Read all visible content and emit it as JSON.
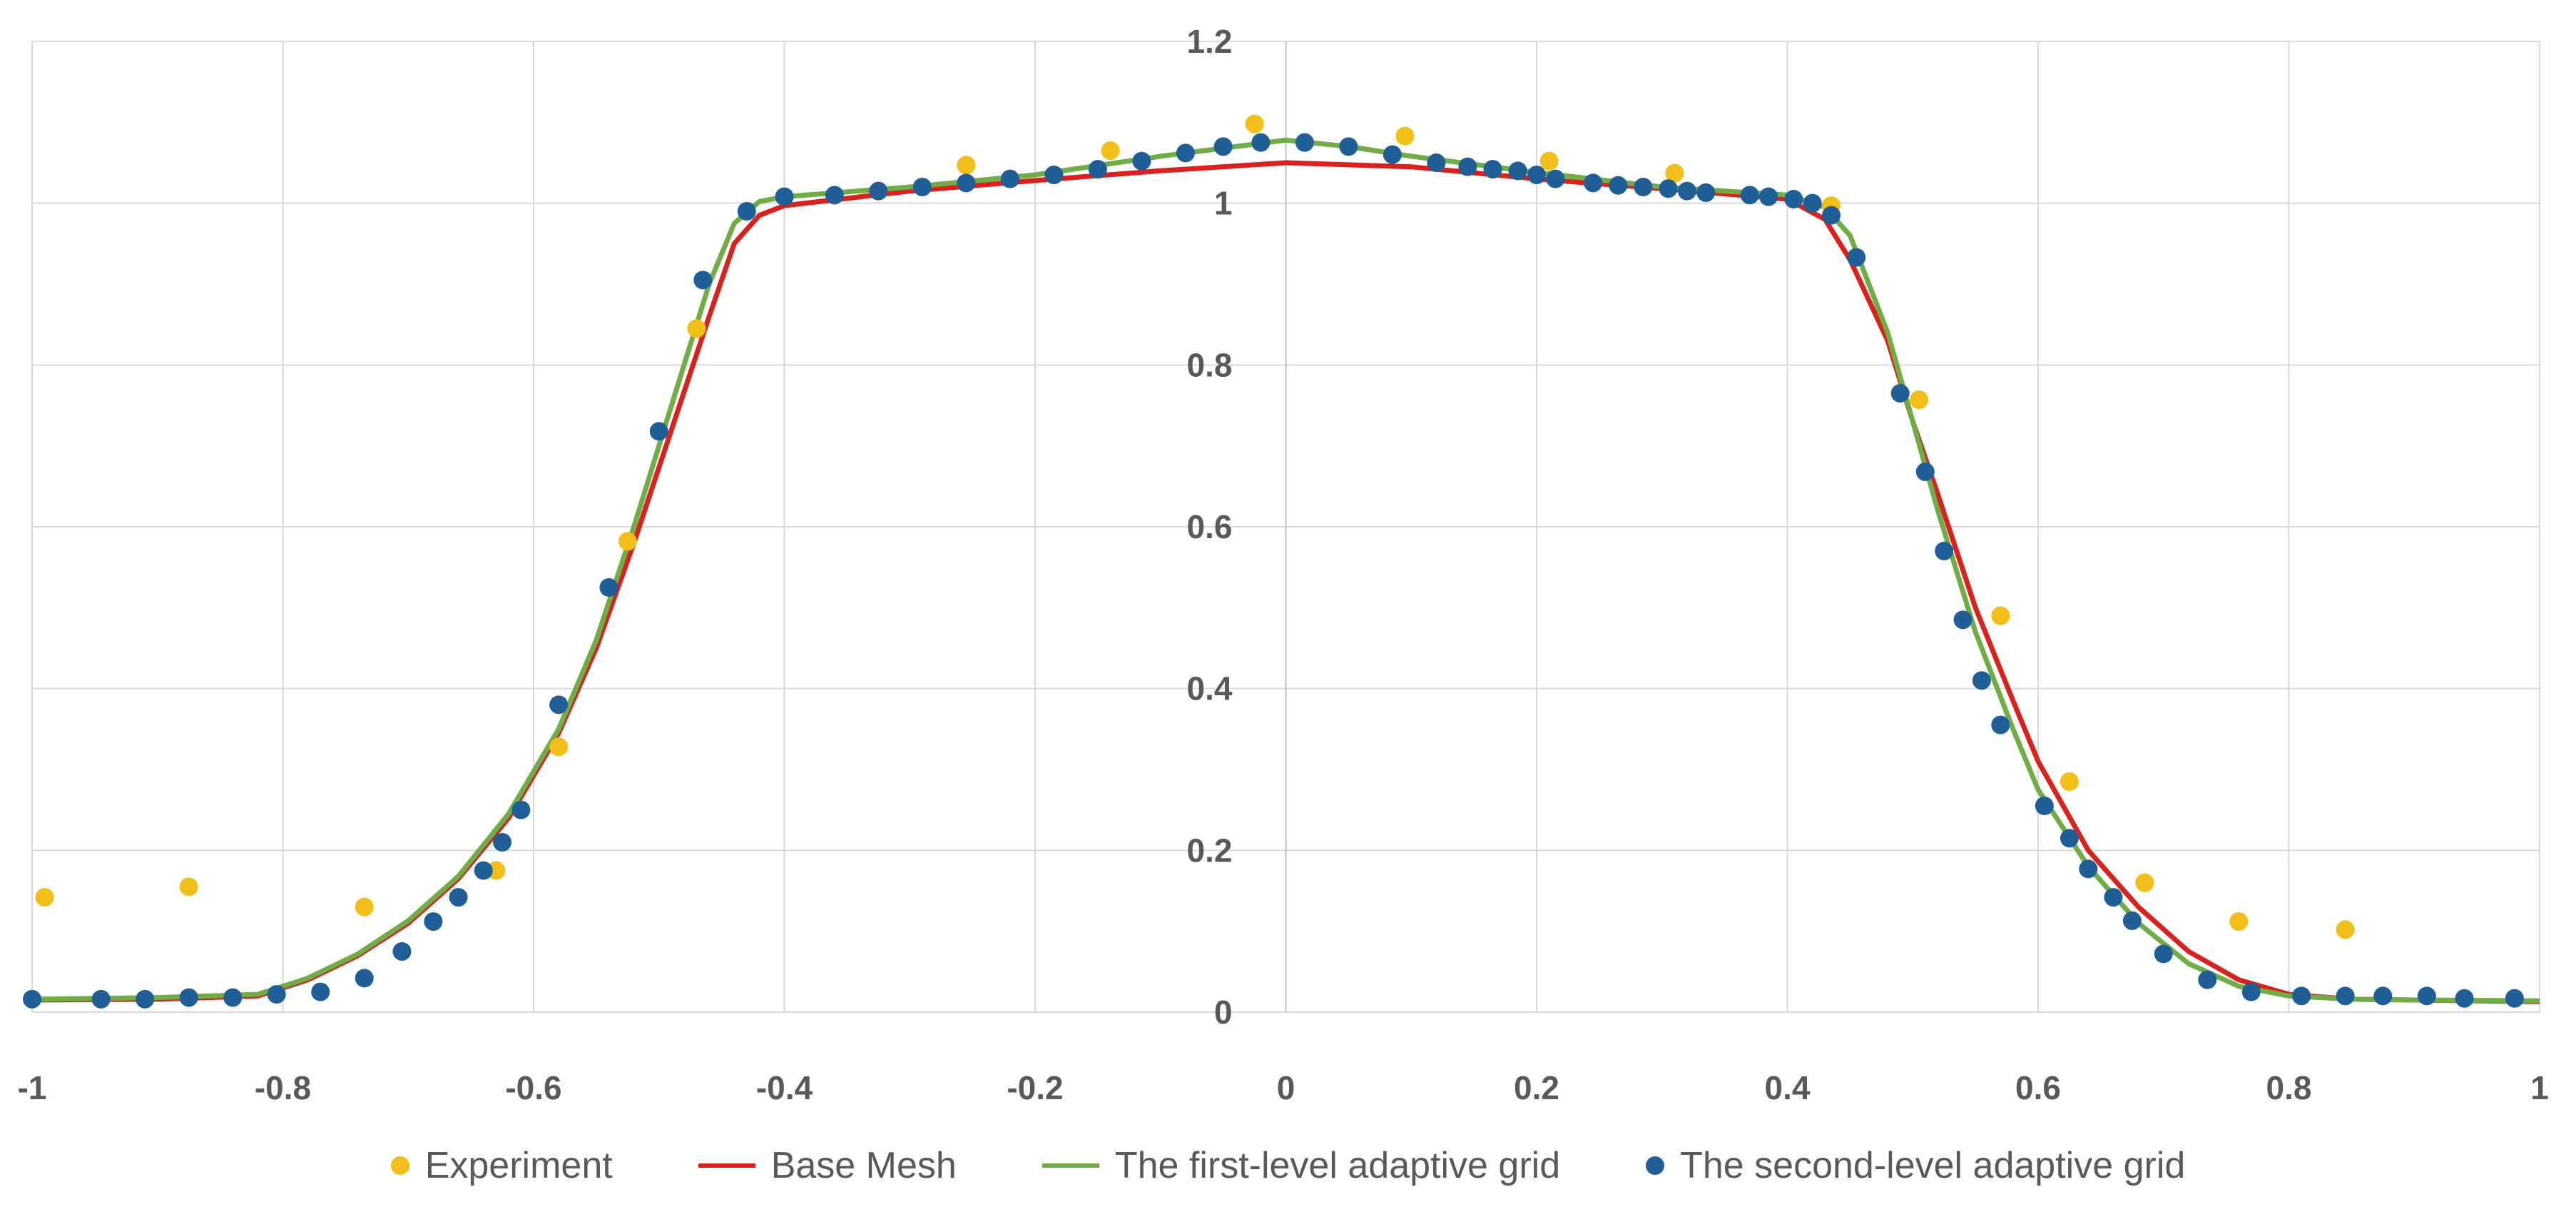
{
  "chart_data": {
    "type": "line",
    "title": "",
    "xlabel": "",
    "ylabel": "",
    "xlim": [
      -1,
      1
    ],
    "ylim": [
      0,
      1.2
    ],
    "grid": true,
    "legend_position": "bottom",
    "x_ticks": [
      "-1",
      "-0.8",
      "-0.6",
      "-0.4",
      "-0.2",
      "0",
      "0.2",
      "0.4",
      "0.6",
      "0.8",
      "1"
    ],
    "y_ticks": [
      "0",
      "0.2",
      "0.4",
      "0.6",
      "0.8",
      "1",
      "1.2"
    ],
    "series": [
      {
        "name": "Experiment",
        "kind": "scatter",
        "color": "#F2BE1A",
        "points": [
          [
            -0.99,
            0.142
          ],
          [
            -0.875,
            0.155
          ],
          [
            -0.735,
            0.13
          ],
          [
            -0.63,
            0.175
          ],
          [
            -0.58,
            0.328
          ],
          [
            -0.525,
            0.582
          ],
          [
            -0.47,
            0.845
          ],
          [
            -0.255,
            1.047
          ],
          [
            -0.14,
            1.065
          ],
          [
            -0.025,
            1.098
          ],
          [
            0.095,
            1.083
          ],
          [
            0.21,
            1.052
          ],
          [
            0.31,
            1.037
          ],
          [
            0.435,
            0.997
          ],
          [
            0.505,
            0.757
          ],
          [
            0.57,
            0.49
          ],
          [
            0.625,
            0.285
          ],
          [
            0.685,
            0.16
          ],
          [
            0.76,
            0.112
          ],
          [
            0.845,
            0.102
          ]
        ]
      },
      {
        "name": "Base Mesh",
        "kind": "line",
        "color": "#D9211E",
        "points": [
          [
            -1,
            0.015
          ],
          [
            -0.9,
            0.016
          ],
          [
            -0.82,
            0.02
          ],
          [
            -0.78,
            0.04
          ],
          [
            -0.74,
            0.07
          ],
          [
            -0.7,
            0.11
          ],
          [
            -0.66,
            0.165
          ],
          [
            -0.62,
            0.24
          ],
          [
            -0.58,
            0.345
          ],
          [
            -0.55,
            0.45
          ],
          [
            -0.52,
            0.58
          ],
          [
            -0.49,
            0.72
          ],
          [
            -0.46,
            0.86
          ],
          [
            -0.44,
            0.95
          ],
          [
            -0.42,
            0.985
          ],
          [
            -0.4,
            0.997
          ],
          [
            -0.3,
            1.015
          ],
          [
            -0.2,
            1.028
          ],
          [
            -0.1,
            1.04
          ],
          [
            0,
            1.05
          ],
          [
            0.1,
            1.045
          ],
          [
            0.2,
            1.03
          ],
          [
            0.3,
            1.018
          ],
          [
            0.4,
            1.005
          ],
          [
            0.43,
            0.98
          ],
          [
            0.45,
            0.93
          ],
          [
            0.48,
            0.83
          ],
          [
            0.5,
            0.73
          ],
          [
            0.52,
            0.64
          ],
          [
            0.55,
            0.5
          ],
          [
            0.58,
            0.385
          ],
          [
            0.6,
            0.31
          ],
          [
            0.64,
            0.2
          ],
          [
            0.68,
            0.13
          ],
          [
            0.72,
            0.075
          ],
          [
            0.76,
            0.04
          ],
          [
            0.8,
            0.022
          ],
          [
            0.85,
            0.016
          ],
          [
            0.9,
            0.015
          ],
          [
            1,
            0.013
          ]
        ]
      },
      {
        "name": "The first-level adaptive grid",
        "kind": "line",
        "color": "#70AD47",
        "points": [
          [
            -1,
            0.016
          ],
          [
            -0.9,
            0.018
          ],
          [
            -0.82,
            0.022
          ],
          [
            -0.78,
            0.042
          ],
          [
            -0.74,
            0.072
          ],
          [
            -0.7,
            0.113
          ],
          [
            -0.66,
            0.168
          ],
          [
            -0.62,
            0.245
          ],
          [
            -0.58,
            0.35
          ],
          [
            -0.55,
            0.46
          ],
          [
            -0.52,
            0.6
          ],
          [
            -0.49,
            0.75
          ],
          [
            -0.46,
            0.9
          ],
          [
            -0.44,
            0.975
          ],
          [
            -0.42,
            1.002
          ],
          [
            -0.4,
            1.008
          ],
          [
            -0.3,
            1.02
          ],
          [
            -0.2,
            1.035
          ],
          [
            -0.1,
            1.058
          ],
          [
            0,
            1.078
          ],
          [
            0.05,
            1.07
          ],
          [
            0.1,
            1.058
          ],
          [
            0.2,
            1.038
          ],
          [
            0.3,
            1.02
          ],
          [
            0.4,
            1.01
          ],
          [
            0.43,
            0.995
          ],
          [
            0.45,
            0.96
          ],
          [
            0.48,
            0.84
          ],
          [
            0.5,
            0.73
          ],
          [
            0.52,
            0.62
          ],
          [
            0.55,
            0.47
          ],
          [
            0.58,
            0.35
          ],
          [
            0.6,
            0.275
          ],
          [
            0.64,
            0.18
          ],
          [
            0.68,
            0.11
          ],
          [
            0.72,
            0.06
          ],
          [
            0.76,
            0.032
          ],
          [
            0.8,
            0.02
          ],
          [
            0.85,
            0.016
          ],
          [
            0.9,
            0.015
          ],
          [
            1,
            0.014
          ]
        ]
      },
      {
        "name": "The second-level adaptive grid",
        "kind": "scatter",
        "color": "#1F5E96",
        "points": [
          [
            -1,
            0.016
          ],
          [
            -0.945,
            0.016
          ],
          [
            -0.91,
            0.016
          ],
          [
            -0.875,
            0.018
          ],
          [
            -0.84,
            0.018
          ],
          [
            -0.805,
            0.022
          ],
          [
            -0.77,
            0.025
          ],
          [
            -0.735,
            0.042
          ],
          [
            -0.705,
            0.075
          ],
          [
            -0.68,
            0.112
          ],
          [
            -0.66,
            0.142
          ],
          [
            -0.64,
            0.175
          ],
          [
            -0.625,
            0.21
          ],
          [
            -0.61,
            0.25
          ],
          [
            -0.58,
            0.38
          ],
          [
            -0.54,
            0.525
          ],
          [
            -0.5,
            0.718
          ],
          [
            -0.465,
            0.905
          ],
          [
            -0.43,
            0.99
          ],
          [
            -0.4,
            1.008
          ],
          [
            -0.36,
            1.01
          ],
          [
            -0.325,
            1.015
          ],
          [
            -0.29,
            1.02
          ],
          [
            -0.255,
            1.025
          ],
          [
            -0.22,
            1.03
          ],
          [
            -0.185,
            1.035
          ],
          [
            -0.15,
            1.042
          ],
          [
            -0.115,
            1.052
          ],
          [
            -0.08,
            1.062
          ],
          [
            -0.05,
            1.07
          ],
          [
            -0.02,
            1.075
          ],
          [
            0.015,
            1.075
          ],
          [
            0.05,
            1.07
          ],
          [
            0.085,
            1.06
          ],
          [
            0.12,
            1.05
          ],
          [
            0.145,
            1.045
          ],
          [
            0.165,
            1.042
          ],
          [
            0.185,
            1.04
          ],
          [
            0.2,
            1.035
          ],
          [
            0.215,
            1.03
          ],
          [
            0.245,
            1.025
          ],
          [
            0.265,
            1.022
          ],
          [
            0.285,
            1.02
          ],
          [
            0.305,
            1.018
          ],
          [
            0.32,
            1.015
          ],
          [
            0.335,
            1.013
          ],
          [
            0.37,
            1.01
          ],
          [
            0.385,
            1.008
          ],
          [
            0.405,
            1.005
          ],
          [
            0.42,
            1.0
          ],
          [
            0.435,
            0.985
          ],
          [
            0.455,
            0.933
          ],
          [
            0.49,
            0.765
          ],
          [
            0.51,
            0.668
          ],
          [
            0.525,
            0.57
          ],
          [
            0.54,
            0.485
          ],
          [
            0.555,
            0.41
          ],
          [
            0.57,
            0.355
          ],
          [
            0.605,
            0.255
          ],
          [
            0.625,
            0.215
          ],
          [
            0.64,
            0.177
          ],
          [
            0.66,
            0.142
          ],
          [
            0.675,
            0.113
          ],
          [
            0.7,
            0.072
          ],
          [
            0.735,
            0.04
          ],
          [
            0.77,
            0.025
          ],
          [
            0.81,
            0.02
          ],
          [
            0.845,
            0.02
          ],
          [
            0.875,
            0.02
          ],
          [
            0.91,
            0.02
          ],
          [
            0.94,
            0.017
          ],
          [
            0.98,
            0.017
          ]
        ]
      }
    ]
  }
}
